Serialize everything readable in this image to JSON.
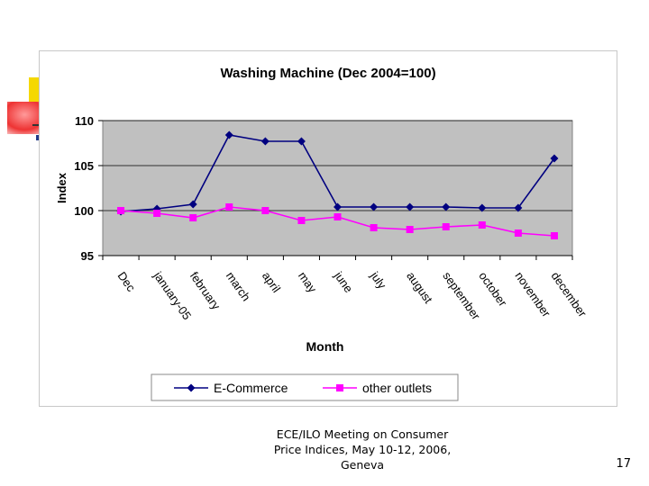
{
  "chart_data": {
    "type": "line",
    "title": "Washing Machine (Dec 2004=100)",
    "xlabel": "Month",
    "ylabel": "Index",
    "categories": [
      "Dec",
      "january-05",
      "february",
      "march",
      "april",
      "may",
      "june",
      "july",
      "august",
      "september",
      "october",
      "november",
      "december"
    ],
    "ylim": [
      95,
      110
    ],
    "yticks": [
      95,
      100,
      105,
      110
    ],
    "grid": "horizontal",
    "legend_position": "bottom",
    "series": [
      {
        "name": "E-Commerce",
        "color": "#000080",
        "marker": "diamond",
        "values": [
          99.9,
          100.2,
          100.7,
          108.4,
          107.7,
          107.7,
          100.4,
          100.4,
          100.4,
          100.4,
          100.3,
          100.3,
          105.8
        ]
      },
      {
        "name": "other outlets",
        "color": "#ff00ff",
        "marker": "square",
        "values": [
          100.0,
          99.7,
          99.2,
          100.4,
          100.0,
          98.9,
          99.3,
          98.1,
          97.9,
          98.2,
          98.4,
          97.5,
          97.2
        ]
      }
    ]
  },
  "footer": {
    "line1": "ECE/ILO Meeting on Consumer",
    "line2": "Price Indices, May 10-12, 2006,",
    "line3": "Geneva"
  },
  "page_number": "17"
}
